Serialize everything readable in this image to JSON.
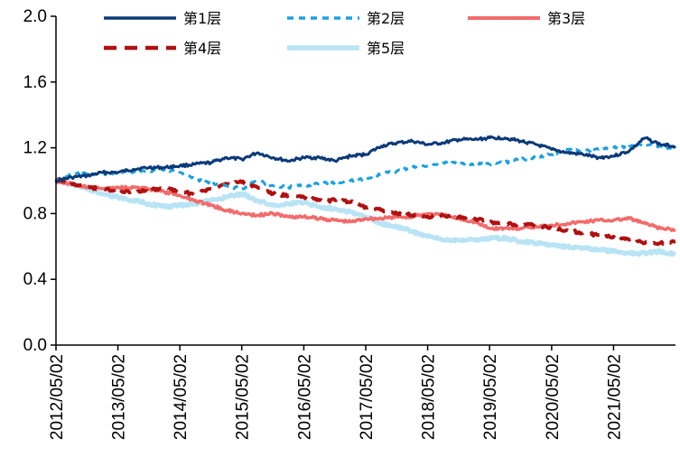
{
  "chart_data": {
    "type": "line",
    "ylim": [
      0.0,
      2.0
    ],
    "y_ticks": [
      "0.0",
      "0.4",
      "0.8",
      "1.2",
      "1.6",
      "2.0"
    ],
    "y_tick_values": [
      0.0,
      0.4,
      0.8,
      1.2,
      1.6,
      2.0
    ],
    "x_range": [
      "2012/05/02",
      "2022/05/02"
    ],
    "x_ticks": [
      "2012/05/02",
      "2013/05/02",
      "2014/05/02",
      "2015/05/02",
      "2016/05/02",
      "2017/05/02",
      "2018/05/02",
      "2019/05/02",
      "2020/05/02",
      "2021/05/02"
    ],
    "grid": false,
    "legend_position": "top",
    "series": [
      {
        "name": "第1层",
        "color": "#0b3a7a",
        "dash": "solid",
        "x": [
          "2012/05/02",
          "2012/08/02",
          "2012/11/02",
          "2013/02/02",
          "2013/05/02",
          "2013/08/02",
          "2013/11/02",
          "2014/02/02",
          "2014/05/02",
          "2014/08/02",
          "2014/11/02",
          "2015/02/02",
          "2015/05/02",
          "2015/08/02",
          "2015/11/02",
          "2016/02/02",
          "2016/05/02",
          "2016/08/02",
          "2016/11/02",
          "2017/02/02",
          "2017/05/02",
          "2017/08/02",
          "2017/11/02",
          "2018/02/02",
          "2018/05/02",
          "2018/08/02",
          "2018/11/02",
          "2019/02/02",
          "2019/05/02",
          "2019/08/02",
          "2019/11/02",
          "2020/02/02",
          "2020/05/02",
          "2020/08/02",
          "2020/11/02",
          "2021/02/02",
          "2021/05/02",
          "2021/08/02",
          "2021/11/02",
          "2022/02/02",
          "2022/05/02"
        ],
        "values": [
          1.0,
          1.02,
          1.03,
          1.05,
          1.05,
          1.07,
          1.08,
          1.08,
          1.09,
          1.1,
          1.11,
          1.14,
          1.13,
          1.17,
          1.14,
          1.12,
          1.14,
          1.14,
          1.12,
          1.15,
          1.16,
          1.21,
          1.23,
          1.24,
          1.22,
          1.23,
          1.25,
          1.25,
          1.26,
          1.26,
          1.24,
          1.22,
          1.19,
          1.17,
          1.16,
          1.14,
          1.15,
          1.18,
          1.26,
          1.22,
          1.21
        ]
      },
      {
        "name": "第2层",
        "color": "#1aa0e0",
        "dash": "dashed",
        "x": [
          "2012/05/02",
          "2012/08/02",
          "2012/11/02",
          "2013/02/02",
          "2013/05/02",
          "2013/08/02",
          "2013/11/02",
          "2014/02/02",
          "2014/05/02",
          "2014/08/02",
          "2014/11/02",
          "2015/02/02",
          "2015/05/02",
          "2015/08/02",
          "2015/11/02",
          "2016/02/02",
          "2016/05/02",
          "2016/08/02",
          "2016/11/02",
          "2017/02/02",
          "2017/05/02",
          "2017/08/02",
          "2017/11/02",
          "2018/02/02",
          "2018/05/02",
          "2018/08/02",
          "2018/11/02",
          "2019/02/02",
          "2019/05/02",
          "2019/08/02",
          "2019/11/02",
          "2020/02/02",
          "2020/05/02",
          "2020/08/02",
          "2020/11/02",
          "2021/02/02",
          "2021/05/02",
          "2021/08/02",
          "2021/11/02",
          "2022/02/02",
          "2022/05/02"
        ],
        "values": [
          1.0,
          1.04,
          1.04,
          1.04,
          1.05,
          1.05,
          1.06,
          1.07,
          1.05,
          1.01,
          0.98,
          0.97,
          0.95,
          1.0,
          0.97,
          0.96,
          0.97,
          0.98,
          0.99,
          1.0,
          1.01,
          1.04,
          1.06,
          1.08,
          1.09,
          1.11,
          1.11,
          1.1,
          1.1,
          1.11,
          1.13,
          1.14,
          1.16,
          1.19,
          1.18,
          1.19,
          1.2,
          1.21,
          1.22,
          1.21,
          1.18
        ]
      },
      {
        "name": "第3层",
        "color": "#f26b6b",
        "dash": "solid",
        "x": [
          "2012/05/02",
          "2012/08/02",
          "2012/11/02",
          "2013/02/02",
          "2013/05/02",
          "2013/08/02",
          "2013/11/02",
          "2014/02/02",
          "2014/05/02",
          "2014/08/02",
          "2014/11/02",
          "2015/02/02",
          "2015/05/02",
          "2015/08/02",
          "2015/11/02",
          "2016/02/02",
          "2016/05/02",
          "2016/08/02",
          "2016/11/02",
          "2017/02/02",
          "2017/05/02",
          "2017/08/02",
          "2017/11/02",
          "2018/02/02",
          "2018/05/02",
          "2018/08/02",
          "2018/11/02",
          "2019/02/02",
          "2019/05/02",
          "2019/08/02",
          "2019/11/02",
          "2020/02/02",
          "2020/05/02",
          "2020/08/02",
          "2020/11/02",
          "2021/02/02",
          "2021/05/02",
          "2021/08/02",
          "2021/11/02",
          "2022/02/02",
          "2022/05/02"
        ],
        "values": [
          1.0,
          0.98,
          0.96,
          0.95,
          0.96,
          0.96,
          0.95,
          0.93,
          0.91,
          0.88,
          0.85,
          0.82,
          0.8,
          0.79,
          0.8,
          0.78,
          0.78,
          0.77,
          0.76,
          0.75,
          0.77,
          0.77,
          0.78,
          0.78,
          0.8,
          0.79,
          0.77,
          0.75,
          0.71,
          0.71,
          0.71,
          0.72,
          0.73,
          0.74,
          0.75,
          0.76,
          0.76,
          0.77,
          0.74,
          0.71,
          0.7
        ]
      },
      {
        "name": "第4层",
        "color": "#b01010",
        "dash": "dashed",
        "x": [
          "2012/05/02",
          "2012/08/02",
          "2012/11/02",
          "2013/02/02",
          "2013/05/02",
          "2013/08/02",
          "2013/11/02",
          "2014/02/02",
          "2014/05/02",
          "2014/08/02",
          "2014/11/02",
          "2015/02/02",
          "2015/05/02",
          "2015/08/02",
          "2015/11/02",
          "2016/02/02",
          "2016/05/02",
          "2016/08/02",
          "2016/11/02",
          "2017/02/02",
          "2017/05/02",
          "2017/08/02",
          "2017/11/02",
          "2018/02/02",
          "2018/05/02",
          "2018/08/02",
          "2018/11/02",
          "2019/02/02",
          "2019/05/02",
          "2019/08/02",
          "2019/11/02",
          "2020/02/02",
          "2020/05/02",
          "2020/08/02",
          "2020/11/02",
          "2021/02/02",
          "2021/05/02",
          "2021/08/02",
          "2021/11/02",
          "2022/02/02",
          "2022/05/02"
        ],
        "values": [
          1.01,
          0.98,
          0.96,
          0.95,
          0.94,
          0.93,
          0.94,
          0.96,
          0.93,
          0.92,
          0.95,
          0.98,
          0.99,
          0.96,
          0.92,
          0.91,
          0.9,
          0.88,
          0.88,
          0.87,
          0.84,
          0.82,
          0.8,
          0.79,
          0.78,
          0.79,
          0.78,
          0.77,
          0.75,
          0.74,
          0.73,
          0.73,
          0.71,
          0.7,
          0.68,
          0.67,
          0.66,
          0.64,
          0.62,
          0.62,
          0.63
        ]
      },
      {
        "name": "第5层",
        "color": "#b8e4f5",
        "dash": "solid",
        "x": [
          "2012/05/02",
          "2012/08/02",
          "2012/11/02",
          "2013/02/02",
          "2013/05/02",
          "2013/08/02",
          "2013/11/02",
          "2014/02/02",
          "2014/05/02",
          "2014/08/02",
          "2014/11/02",
          "2015/02/02",
          "2015/05/02",
          "2015/08/02",
          "2015/11/02",
          "2016/02/02",
          "2016/05/02",
          "2016/08/02",
          "2016/11/02",
          "2017/02/02",
          "2017/05/02",
          "2017/08/02",
          "2017/11/02",
          "2018/02/02",
          "2018/05/02",
          "2018/08/02",
          "2018/11/02",
          "2019/02/02",
          "2019/05/02",
          "2019/08/02",
          "2019/11/02",
          "2020/02/02",
          "2020/05/02",
          "2020/08/02",
          "2020/11/02",
          "2021/02/02",
          "2021/05/02",
          "2021/08/02",
          "2021/11/02",
          "2022/02/02",
          "2022/05/02"
        ],
        "values": [
          1.0,
          0.98,
          0.95,
          0.92,
          0.9,
          0.88,
          0.86,
          0.84,
          0.85,
          0.86,
          0.88,
          0.9,
          0.92,
          0.88,
          0.85,
          0.86,
          0.87,
          0.84,
          0.83,
          0.81,
          0.78,
          0.74,
          0.72,
          0.69,
          0.66,
          0.64,
          0.64,
          0.64,
          0.65,
          0.65,
          0.63,
          0.62,
          0.61,
          0.6,
          0.59,
          0.58,
          0.57,
          0.56,
          0.56,
          0.57,
          0.55
        ]
      }
    ]
  }
}
